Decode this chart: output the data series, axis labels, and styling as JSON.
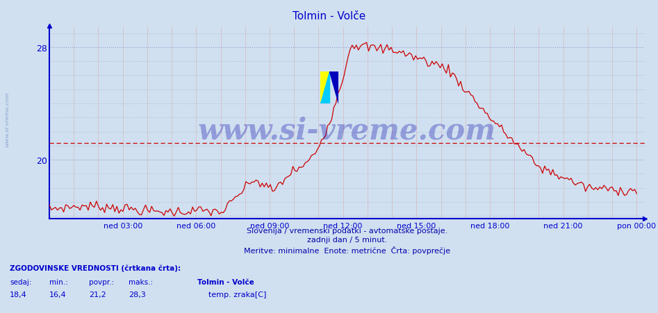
{
  "title": "Tolmin - Volče",
  "title_color": "#0000cc",
  "bg_color": "#d0e0f0",
  "plot_bg_color": "#d0e0f0",
  "line_color": "#cc0000",
  "axis_color": "#0000cc",
  "dashed_line_color": "#cc0000",
  "dashed_line_value": 21.2,
  "y_ticks": [
    20,
    28
  ],
  "y_min": 16.0,
  "y_max": 29.0,
  "x_labels": [
    "ned 03:00",
    "ned 06:00",
    "ned 09:00",
    "ned 12:00",
    "ned 15:00",
    "ned 18:00",
    "ned 21:00",
    "pon 00:00"
  ],
  "watermark": "www.si-vreme.com",
  "watermark_color": "#0000aa",
  "watermark_alpha": 0.3,
  "footer_line1": "Slovenija / vremenski podatki - avtomatske postaje.",
  "footer_line2": "zadnji dan / 5 minut.",
  "footer_line3": "Meritve: minimalne  Enote: metrične  Črta: povprečje",
  "footer_color": "#0000aa",
  "label_section": "ZGODOVINSKE VREDNOSTI (črtkana črta):",
  "label_sedaj": "sedaj:",
  "label_min": "min.:",
  "label_povpr": "povpr.:",
  "label_maks": "maks.:",
  "val_sedaj": "18,4",
  "val_min": "16,4",
  "val_povpr": "21,2",
  "val_maks": "28,3",
  "station_name": "Tolmin - Volče",
  "sensor_label": "temp. zraka[C]",
  "sensor_color": "#cc0000",
  "sidebar_text": "www.si-vreme.com",
  "sidebar_color": "#4466aa",
  "sidebar_alpha": 0.5
}
